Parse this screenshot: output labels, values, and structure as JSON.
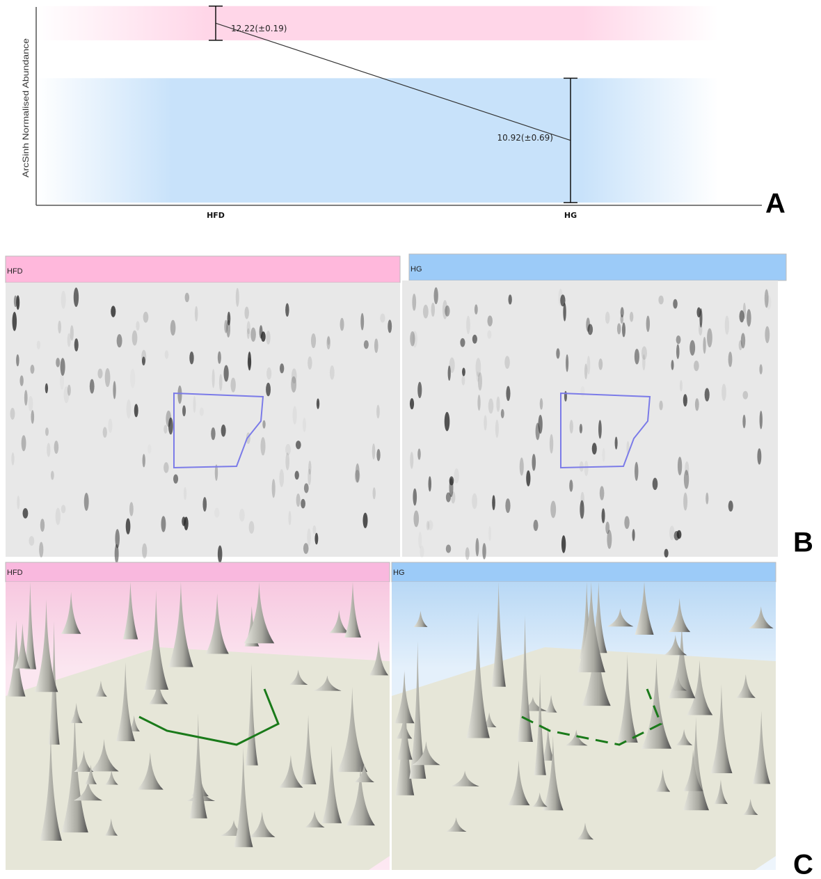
{
  "chart_data": {
    "type": "line",
    "y_label": "ArcSinh Normalised Abundance",
    "categories": [
      "HFD",
      "HG"
    ],
    "values": [
      12.22,
      10.92
    ],
    "errors": [
      0.19,
      0.69
    ],
    "value_labels": [
      "12.22(±0.19)",
      "10.92(±0.69)"
    ],
    "colors": [
      "#ffd6e8",
      "#c8e2fa"
    ],
    "line_color": "#333333",
    "ylim": [
      10.2,
      12.4
    ]
  },
  "panels": [
    {
      "label": "A"
    },
    {
      "label": "B",
      "headers": [
        "HFD",
        "HG"
      ]
    },
    {
      "label": "C",
      "headers": [
        "HFD",
        "HG"
      ]
    }
  ]
}
